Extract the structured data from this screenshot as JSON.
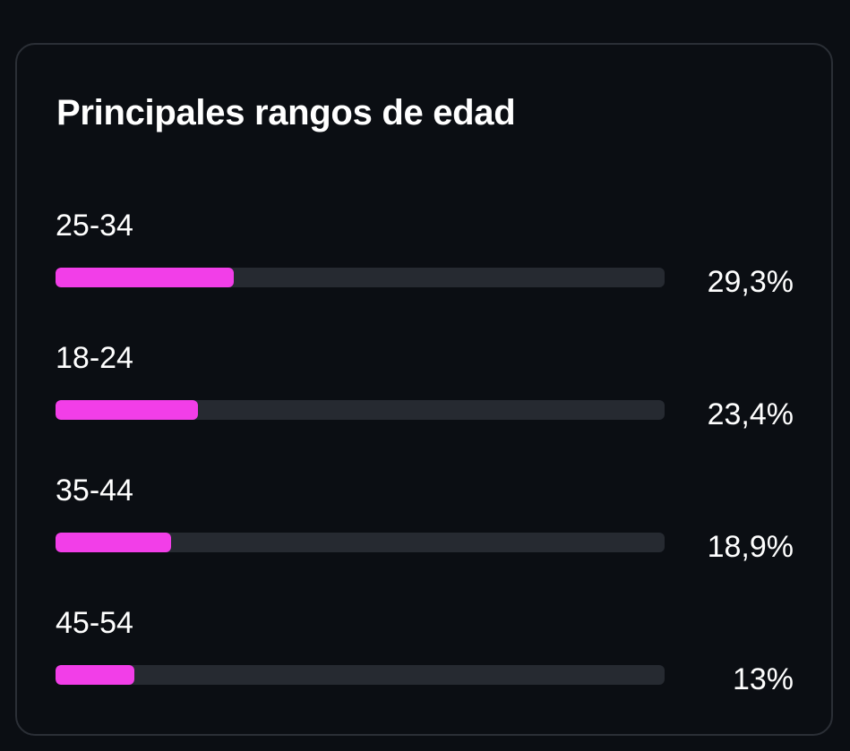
{
  "card": {
    "title": "Principales rangos de edad"
  },
  "colors": {
    "background": "#0b0e13",
    "card_border": "#2b2f36",
    "track": "#262a31",
    "bar": "#f23ee8",
    "text": "#ffffff"
  },
  "chart_data": {
    "type": "bar",
    "orientation": "horizontal",
    "title": "Principales rangos de edad",
    "categories": [
      "25-34",
      "18-24",
      "35-44",
      "45-54"
    ],
    "values": [
      29.3,
      23.4,
      18.9,
      13
    ],
    "value_labels": [
      "29,3%",
      "23,4%",
      "18,9%",
      "13%"
    ],
    "xlim": [
      0,
      100
    ],
    "grid": false,
    "legend": "none"
  }
}
